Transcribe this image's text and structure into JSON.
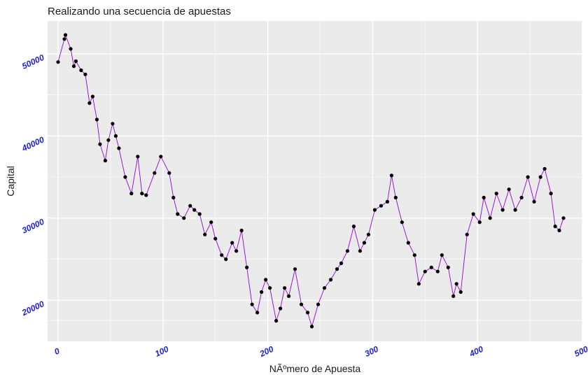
{
  "chart_data": {
    "type": "line",
    "title": "Realizando una secuencia de apuestas",
    "xlabel": "NÃºmero de Apuesta",
    "ylabel": "Capital",
    "xlim": [
      -10,
      500
    ],
    "ylim": [
      15000,
      54000
    ],
    "xticks": [
      0,
      100,
      200,
      300,
      400,
      500
    ],
    "yticks": [
      20000,
      30000,
      40000,
      50000
    ],
    "xtick_labels": [
      "0",
      "100",
      "200",
      "300",
      "400",
      "500"
    ],
    "ytick_labels": [
      "20000",
      "30000",
      "40000",
      "50000"
    ],
    "grid": true,
    "legend": "none",
    "colors": {
      "panel": "#ebebeb",
      "grid": "#ffffff",
      "line": "#9400d3",
      "point": "#000000",
      "tick_label": "#1f1fc8"
    },
    "series": [
      {
        "points": [
          [
            0,
            49000
          ],
          [
            6,
            51800
          ],
          [
            7,
            52300
          ],
          [
            12,
            50600
          ],
          [
            15,
            48500
          ],
          [
            17,
            49100
          ],
          [
            22,
            48000
          ],
          [
            26,
            47500
          ],
          [
            30,
            44000
          ],
          [
            33,
            44800
          ],
          [
            37,
            42000
          ],
          [
            40,
            39000
          ],
          [
            45,
            37000
          ],
          [
            48,
            39500
          ],
          [
            52,
            41500
          ],
          [
            55,
            40000
          ],
          [
            58,
            38500
          ],
          [
            64,
            35000
          ],
          [
            70,
            33000
          ],
          [
            76,
            37500
          ],
          [
            80,
            33000
          ],
          [
            84,
            32800
          ],
          [
            92,
            35500
          ],
          [
            98,
            37500
          ],
          [
            106,
            35500
          ],
          [
            110,
            32500
          ],
          [
            114,
            30500
          ],
          [
            120,
            30000
          ],
          [
            126,
            31500
          ],
          [
            130,
            31000
          ],
          [
            135,
            30500
          ],
          [
            140,
            28000
          ],
          [
            146,
            29500
          ],
          [
            150,
            27500
          ],
          [
            156,
            25500
          ],
          [
            160,
            25000
          ],
          [
            166,
            27000
          ],
          [
            170,
            26000
          ],
          [
            175,
            28500
          ],
          [
            180,
            24000
          ],
          [
            185,
            19500
          ],
          [
            190,
            18500
          ],
          [
            194,
            21000
          ],
          [
            198,
            22500
          ],
          [
            202,
            21500
          ],
          [
            208,
            17500
          ],
          [
            212,
            19000
          ],
          [
            216,
            21500
          ],
          [
            220,
            20500
          ],
          [
            226,
            23800
          ],
          [
            232,
            19500
          ],
          [
            238,
            18500
          ],
          [
            242,
            16800
          ],
          [
            248,
            19500
          ],
          [
            254,
            21500
          ],
          [
            260,
            22500
          ],
          [
            266,
            23800
          ],
          [
            270,
            24500
          ],
          [
            276,
            26000
          ],
          [
            282,
            29000
          ],
          [
            288,
            26000
          ],
          [
            292,
            27000
          ],
          [
            296,
            28000
          ],
          [
            302,
            31000
          ],
          [
            308,
            31500
          ],
          [
            314,
            32000
          ],
          [
            318,
            35200
          ],
          [
            322,
            32500
          ],
          [
            328,
            29500
          ],
          [
            334,
            27000
          ],
          [
            340,
            25500
          ],
          [
            344,
            22000
          ],
          [
            350,
            23500
          ],
          [
            356,
            24000
          ],
          [
            362,
            23500
          ],
          [
            366,
            25500
          ],
          [
            372,
            24000
          ],
          [
            377,
            20500
          ],
          [
            380,
            22000
          ],
          [
            384,
            21000
          ],
          [
            390,
            28000
          ],
          [
            396,
            30500
          ],
          [
            402,
            29500
          ],
          [
            406,
            32500
          ],
          [
            412,
            30000
          ],
          [
            418,
            33000
          ],
          [
            424,
            31000
          ],
          [
            430,
            33500
          ],
          [
            436,
            31000
          ],
          [
            442,
            32500
          ],
          [
            448,
            35000
          ],
          [
            454,
            32000
          ],
          [
            460,
            35000
          ],
          [
            464,
            36000
          ],
          [
            470,
            33000
          ],
          [
            474,
            29000
          ],
          [
            478,
            28500
          ],
          [
            482,
            30000
          ]
        ]
      }
    ]
  }
}
